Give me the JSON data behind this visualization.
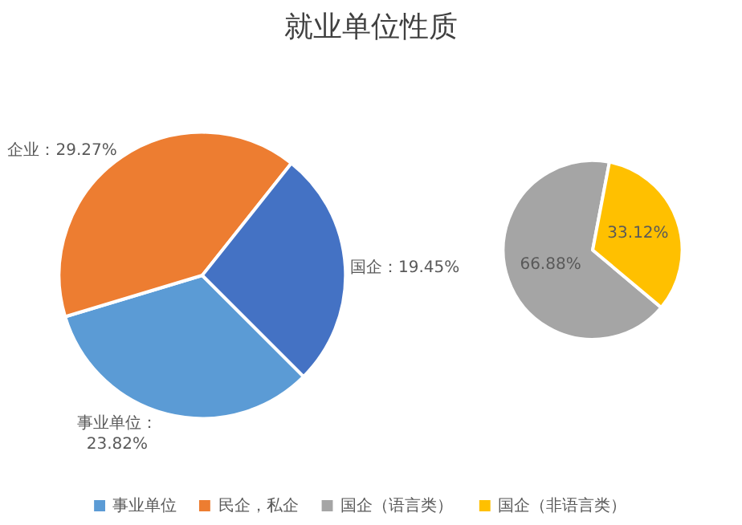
{
  "chart_data": [
    {
      "type": "pie",
      "title": "就业单位性质",
      "categories": [
        "事业单位",
        "民企，私企",
        null
      ],
      "values": [
        23.82,
        29.27,
        19.45
      ],
      "colors": [
        "#5b9bd5",
        "#ed7d31",
        "#4472c4"
      ],
      "value_labels": [
        "事业单位：\n23.82%",
        "企业：29.27%",
        "国企：19.45%"
      ],
      "legend": "bottom"
    },
    {
      "type": "pie",
      "categories": [
        "国企（语言类）",
        "国企（非语言类）"
      ],
      "values": [
        66.88,
        33.12
      ],
      "colors": [
        "#a5a5a5",
        "#ffc000"
      ],
      "value_labels": [
        "66.88%",
        "33.12%"
      ],
      "legend": "bottom"
    }
  ]
}
